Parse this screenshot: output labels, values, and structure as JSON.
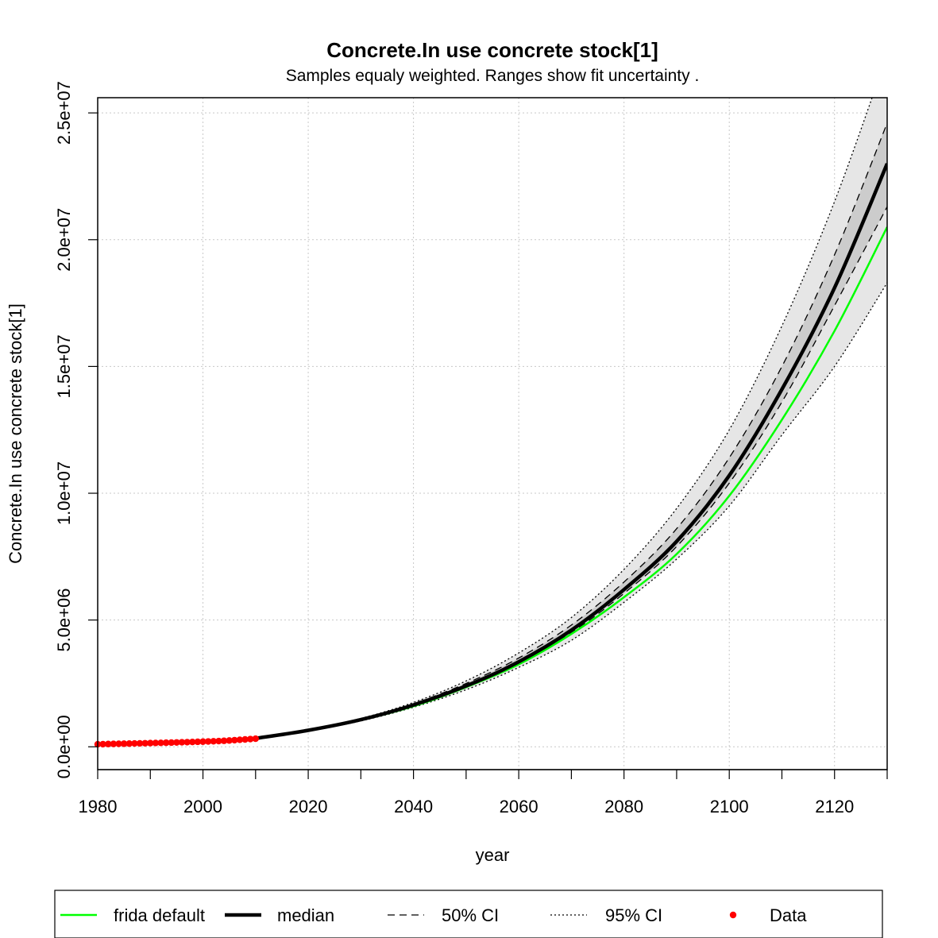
{
  "chart_data": {
    "type": "line",
    "title": "Concrete.In use concrete stock[1]",
    "subtitle": "Samples equaly weighted. Ranges show  fit uncertainty .",
    "xlabel": "year",
    "ylabel": "Concrete.In use concrete stock[1]",
    "xlim": [
      1980,
      2130
    ],
    "ylim": [
      -900000,
      25600000
    ],
    "x_ticks": [
      1980,
      2000,
      2020,
      2040,
      2060,
      2080,
      2100,
      2120
    ],
    "x_tick_labels": [
      "1980",
      "2000",
      "2020",
      "2040",
      "2060",
      "2080",
      "2100",
      "2120"
    ],
    "y_ticks": [
      0,
      5000000,
      10000000,
      15000000,
      20000000,
      25000000
    ],
    "y_tick_labels": [
      "0.0e+00",
      "5.0e+06",
      "1.0e+07",
      "1.5e+07",
      "2.0e+07",
      "2.5e+07"
    ],
    "grid": true,
    "legend_position": "bottom",
    "x": [
      2010,
      2020,
      2030,
      2040,
      2050,
      2060,
      2070,
      2080,
      2090,
      2100,
      2110,
      2120,
      2130
    ],
    "series": [
      {
        "name": "frida default",
        "color": "#00ff00",
        "style": "solid",
        "values": [
          320000,
          640000,
          1050000,
          1600000,
          2350000,
          3250000,
          4450000,
          5900000,
          7600000,
          9900000,
          12900000,
          16400000,
          20500000
        ]
      },
      {
        "name": "median",
        "color": "#000000",
        "style": "solid-thick",
        "values": [
          330000,
          650000,
          1070000,
          1650000,
          2400000,
          3350000,
          4600000,
          6200000,
          8100000,
          10700000,
          14100000,
          18100000,
          23000000
        ]
      },
      {
        "name": "50% CI upper",
        "color": "#000000",
        "style": "dashed",
        "values": [
          340000,
          660000,
          1100000,
          1700000,
          2500000,
          3500000,
          4800000,
          6500000,
          8600000,
          11400000,
          15000000,
          19400000,
          24600000
        ]
      },
      {
        "name": "50% CI lower",
        "color": "#000000",
        "style": "dashed",
        "values": [
          320000,
          640000,
          1050000,
          1620000,
          2360000,
          3280000,
          4500000,
          6050000,
          7900000,
          10400000,
          13600000,
          17400000,
          21300000
        ]
      },
      {
        "name": "95% CI upper",
        "color": "#000000",
        "style": "dotted",
        "values": [
          350000,
          680000,
          1120000,
          1750000,
          2600000,
          3700000,
          5100000,
          7000000,
          9400000,
          12500000,
          16600000,
          21500000,
          27300000
        ]
      },
      {
        "name": "95% CI lower",
        "color": "#000000",
        "style": "dotted",
        "values": [
          310000,
          630000,
          1020000,
          1560000,
          2250000,
          3130000,
          4200000,
          5700000,
          7400000,
          9500000,
          12300000,
          15000000,
          18300000
        ]
      }
    ],
    "data_points": {
      "name": "Data",
      "color": "#ff0000",
      "x": [
        1980,
        1981,
        1982,
        1983,
        1984,
        1985,
        1986,
        1987,
        1988,
        1989,
        1990,
        1991,
        1992,
        1993,
        1994,
        1995,
        1996,
        1997,
        1998,
        1999,
        2000,
        2001,
        2002,
        2003,
        2004,
        2005,
        2006,
        2007,
        2008,
        2009,
        2010
      ],
      "y": [
        100000,
        105000,
        110000,
        114000,
        118000,
        122000,
        126000,
        131000,
        136000,
        141000,
        146000,
        151000,
        156000,
        161000,
        166000,
        172000,
        178000,
        184000,
        190000,
        197000,
        204000,
        211000,
        218000,
        226000,
        236000,
        248000,
        262000,
        276000,
        290000,
        305000,
        320000
      ]
    }
  },
  "legend": {
    "items": [
      {
        "label": "frida default",
        "color": "#00ff00",
        "style": "solid"
      },
      {
        "label": "median",
        "color": "#000000",
        "style": "solid-thick"
      },
      {
        "label": "50% CI",
        "color": "#000000",
        "style": "dashed"
      },
      {
        "label": "95% CI",
        "color": "#000000",
        "style": "dotted"
      },
      {
        "label": "Data",
        "color": "#ff0000",
        "style": "point"
      }
    ]
  },
  "colors": {
    "band95": "#e6e6e6",
    "band50": "#cccccc",
    "grid": "#c8c8c8"
  }
}
